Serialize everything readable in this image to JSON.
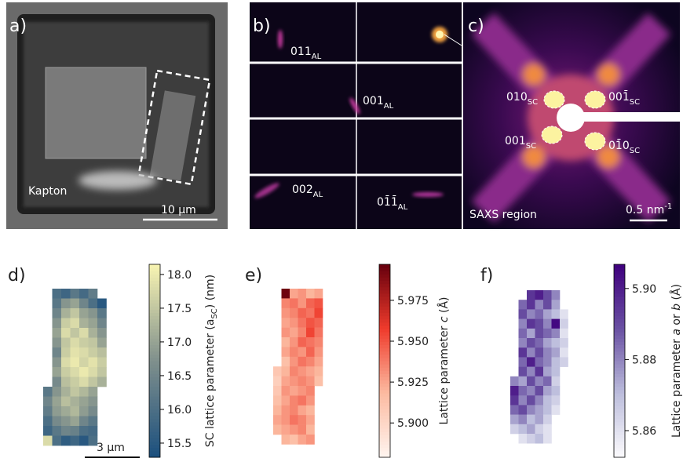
{
  "panels": {
    "a": {
      "label": "a)",
      "substrate": "Kapton",
      "scale": "10 μm"
    },
    "b": {
      "label": "b)",
      "peaks": [
        {
          "main": "011",
          "sub": "AL"
        },
        {
          "main": "001",
          "sub": "AL"
        },
        {
          "main": "002",
          "sub": "AL"
        },
        {
          "main": "01̄1̄",
          "sub": "AL"
        }
      ]
    },
    "c": {
      "label": "c)",
      "peaks": [
        {
          "main": "010",
          "sub": "SC"
        },
        {
          "main": "001̄",
          "sub": "SC"
        },
        {
          "main": "001",
          "sub": "SC"
        },
        {
          "main": "01̄0",
          "sub": "SC"
        }
      ],
      "region": "SAXS region",
      "scale": {
        "main": "0.5 nm",
        "sup": "-1"
      }
    },
    "d": {
      "label": "d)",
      "scale": "3 μm",
      "colorbar_label": [
        "SC lattice parameter (a",
        "SC",
        ") (nm)"
      ],
      "clim": [
        15.29,
        18.15
      ],
      "ticks": [
        15.5,
        {
          "value": 16,
          "label": "16.0"
        },
        16.5,
        {
          "value": 17,
          "label": "17.0"
        },
        17.5,
        {
          "value": 18,
          "label": "18.0"
        }
      ],
      "colormap": [
        "#1a4f7e",
        "#7f8f8c",
        "#f8f4b2"
      ],
      "grid": [
        [
          null,
          16.0,
          15.8,
          16.2,
          15.9,
          16.3,
          null
        ],
        [
          null,
          16.2,
          16.8,
          17.0,
          16.5,
          16.0,
          15.5
        ],
        [
          null,
          16.5,
          17.2,
          17.5,
          17.0,
          16.8,
          16.2
        ],
        [
          null,
          16.8,
          17.6,
          17.8,
          17.2,
          17.0,
          16.5
        ],
        [
          null,
          17.0,
          17.8,
          17.5,
          17.8,
          17.2,
          16.8
        ],
        [
          null,
          16.8,
          17.5,
          17.8,
          17.6,
          17.5,
          17.0
        ],
        [
          null,
          16.5,
          17.6,
          17.9,
          17.8,
          17.6,
          17.4
        ],
        [
          null,
          16.8,
          17.8,
          18.0,
          17.7,
          17.9,
          17.6
        ],
        [
          null,
          17.0,
          17.6,
          17.8,
          18.0,
          17.8,
          17.5
        ],
        [
          null,
          16.6,
          17.4,
          17.6,
          17.8,
          17.5,
          17.2
        ],
        [
          16.2,
          16.8,
          17.2,
          17.5,
          17.3,
          17.0,
          null
        ],
        [
          16.5,
          17.0,
          17.4,
          17.2,
          17.0,
          16.8,
          null
        ],
        [
          16.3,
          16.9,
          17.1,
          17.3,
          16.9,
          16.6,
          null
        ],
        [
          16.0,
          16.6,
          16.8,
          17.0,
          16.5,
          16.2,
          null
        ],
        [
          15.8,
          16.2,
          16.5,
          16.4,
          16.0,
          15.9,
          null
        ],
        [
          17.8,
          16.0,
          15.6,
          15.8,
          15.5,
          16.0,
          null
        ]
      ]
    },
    "e": {
      "label": "e)",
      "colorbar_label": [
        "Lattice parameter ",
        "c",
        " (Å)"
      ],
      "clim": [
        5.879,
        5.997
      ],
      "ticks": [
        {
          "value": 5.9,
          "label": "5.900"
        },
        5.925,
        {
          "value": 5.95,
          "label": "5.950"
        },
        5.975
      ],
      "colormap": [
        "#fff5f0",
        "#fcbba1",
        "#ef3b2c",
        "#67000d"
      ],
      "grid": [
        [
          null,
          5.995,
          5.925,
          5.93,
          5.92,
          5.925,
          null
        ],
        [
          null,
          5.935,
          5.94,
          5.93,
          5.945,
          5.95,
          null
        ],
        [
          null,
          5.93,
          5.935,
          5.945,
          5.94,
          5.955,
          null
        ],
        [
          null,
          5.925,
          5.93,
          5.94,
          5.95,
          5.945,
          null
        ],
        [
          null,
          5.93,
          5.925,
          5.935,
          5.955,
          5.94,
          null
        ],
        [
          null,
          5.92,
          5.93,
          5.945,
          5.94,
          5.935,
          null
        ],
        [
          null,
          5.925,
          5.935,
          5.93,
          5.945,
          5.93,
          null
        ],
        [
          null,
          5.915,
          5.93,
          5.94,
          5.935,
          5.925,
          null
        ],
        [
          5.91,
          5.92,
          5.935,
          5.93,
          5.925,
          5.92,
          null
        ],
        [
          5.905,
          5.925,
          5.93,
          5.935,
          5.93,
          5.915,
          null
        ],
        [
          5.91,
          5.93,
          5.925,
          5.93,
          5.935,
          null,
          null
        ],
        [
          5.915,
          5.925,
          5.935,
          5.94,
          5.93,
          null,
          null
        ],
        [
          5.92,
          5.93,
          5.935,
          5.925,
          5.92,
          null,
          null
        ],
        [
          5.925,
          5.93,
          5.94,
          5.935,
          5.925,
          null,
          null
        ],
        [
          5.92,
          5.925,
          5.93,
          5.935,
          5.92,
          null,
          null
        ],
        [
          null,
          5.92,
          5.915,
          5.925,
          5.93,
          null,
          null
        ]
      ]
    },
    "f": {
      "label": "f)",
      "colorbar_label": [
        "Lattice parameter ",
        "a",
        " or ",
        "b",
        " (Å)"
      ],
      "clim": [
        5.8525,
        5.9068
      ],
      "ticks": [
        5.86,
        5.88,
        {
          "value": 5.9,
          "label": "5.90"
        }
      ],
      "colormap": [
        "#fcfbfd",
        "#bcbddc",
        "#6a51a3",
        "#3f007d"
      ],
      "grid": [
        [
          null,
          null,
          5.895,
          5.9,
          5.89,
          5.88,
          null
        ],
        [
          null,
          5.885,
          5.895,
          5.88,
          5.89,
          5.875,
          null
        ],
        [
          null,
          5.89,
          5.88,
          5.885,
          5.875,
          5.87,
          5.86
        ],
        [
          null,
          5.88,
          5.895,
          5.89,
          5.88,
          5.905,
          5.865
        ],
        [
          null,
          5.885,
          5.875,
          5.89,
          5.885,
          5.88,
          5.86
        ],
        [
          null,
          5.88,
          5.89,
          5.885,
          5.875,
          5.87,
          5.865
        ],
        [
          null,
          5.895,
          5.88,
          5.89,
          5.88,
          5.875,
          5.86
        ],
        [
          null,
          5.885,
          5.9,
          5.885,
          5.88,
          5.87,
          5.865
        ],
        [
          null,
          5.89,
          5.88,
          5.895,
          5.875,
          5.87,
          null
        ],
        [
          5.88,
          5.875,
          5.89,
          5.88,
          5.885,
          5.865,
          null
        ],
        [
          5.9,
          5.885,
          5.88,
          5.89,
          5.875,
          5.87,
          null
        ],
        [
          5.895,
          5.88,
          5.89,
          5.88,
          5.87,
          5.865,
          null
        ],
        [
          5.885,
          5.89,
          5.88,
          5.875,
          5.87,
          5.86,
          null
        ],
        [
          5.875,
          5.88,
          5.87,
          5.875,
          5.865,
          null,
          null
        ],
        [
          5.865,
          5.87,
          5.875,
          5.865,
          5.86,
          null,
          null
        ],
        [
          null,
          5.86,
          5.865,
          5.87,
          5.86,
          null,
          null
        ]
      ]
    }
  }
}
